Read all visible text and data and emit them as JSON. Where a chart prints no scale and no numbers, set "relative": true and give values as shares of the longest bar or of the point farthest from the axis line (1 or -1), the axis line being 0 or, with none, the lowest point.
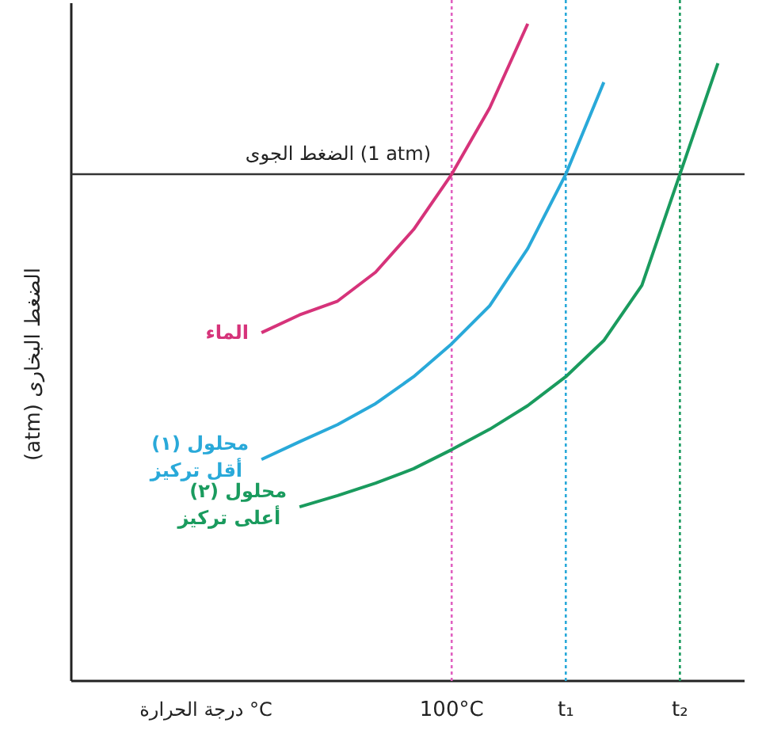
{
  "chart_data": {
    "type": "line",
    "relative": true,
    "xlabel": "درجة الحرارة °C",
    "ylabel": "الضغط البخارى (atm)",
    "categories": [
      null,
      null,
      null,
      null,
      null,
      null,
      null,
      null,
      null,
      "100°C",
      null,
      null,
      "t₁",
      null,
      null,
      "t₂",
      null
    ],
    "grid": false,
    "marker": "none",
    "line_style": "solid",
    "series": [
      {
        "name": "الماء",
        "color": "#d6337a",
        "values": [
          null,
          null,
          null,
          null,
          0.53,
          0.557,
          0.578,
          0.622,
          0.687,
          0.771,
          0.872,
          1.0,
          null,
          null,
          null,
          null,
          null
        ]
      },
      {
        "name": "محلول (١)\nأقل تركيز",
        "color": "#29a9d9",
        "values": [
          null,
          null,
          null,
          null,
          0.337,
          0.364,
          0.39,
          0.422,
          0.463,
          0.513,
          0.571,
          0.658,
          0.771,
          0.911,
          null,
          null,
          null
        ]
      },
      {
        "name": "محلول (٢)\nأعلى تركيز",
        "color": "#1a9b5e",
        "values": [
          null,
          null,
          null,
          null,
          null,
          0.265,
          0.282,
          0.301,
          0.323,
          0.352,
          0.383,
          0.419,
          0.463,
          0.518,
          0.602,
          0.771,
          0.94
        ]
      }
    ],
    "ref_lines": [
      {
        "axis": "y",
        "value": 0.771,
        "label": "الضغط الجوى (1 atm)",
        "color": "#333333",
        "line_style": "solid"
      },
      {
        "axis": "x",
        "value": "100°C",
        "color": "#e060c0",
        "line_style": "dotted"
      },
      {
        "axis": "x",
        "value": "t₁",
        "color": "#29a9d9",
        "line_style": "dotted"
      },
      {
        "axis": "x",
        "value": "t₂",
        "color": "#1a9b5e",
        "line_style": "dotted"
      }
    ]
  }
}
